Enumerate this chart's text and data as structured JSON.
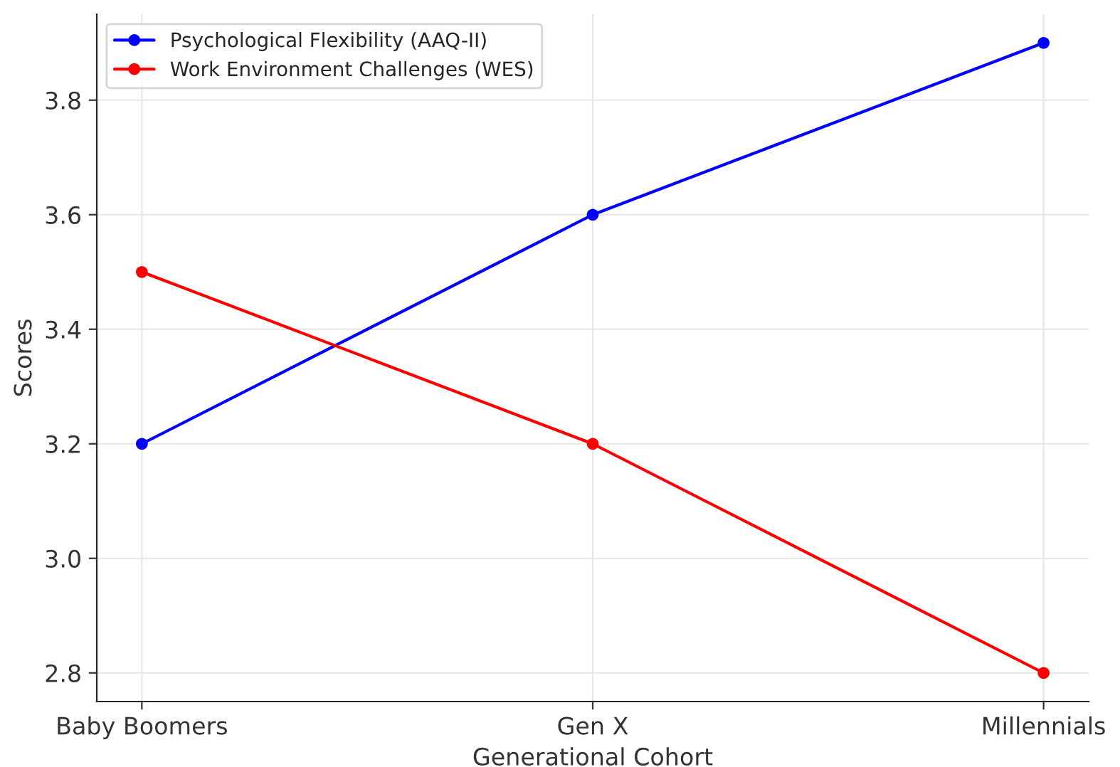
{
  "chart_data": {
    "type": "line",
    "xlabel": "Generational Cohort",
    "ylabel": "Scores",
    "categories": [
      "Baby Boomers",
      "Gen X",
      "Millennials"
    ],
    "series": [
      {
        "name": "Psychological Flexibility (AAQ-II)",
        "color": "#0000ff",
        "values": [
          3.2,
          3.6,
          3.9
        ]
      },
      {
        "name": "Work Environment Challenges (WES)",
        "color": "#ff0000",
        "values": [
          3.5,
          3.2,
          2.8
        ]
      }
    ],
    "ylim": [
      2.75,
      3.95
    ],
    "yticks": [
      2.8,
      {
        "value": 3,
        "label": "3.0"
      },
      3.2,
      3.4,
      3.6,
      3.8
    ],
    "grid": true,
    "legend": "top left",
    "marker": "circle",
    "line_style": "solid"
  }
}
